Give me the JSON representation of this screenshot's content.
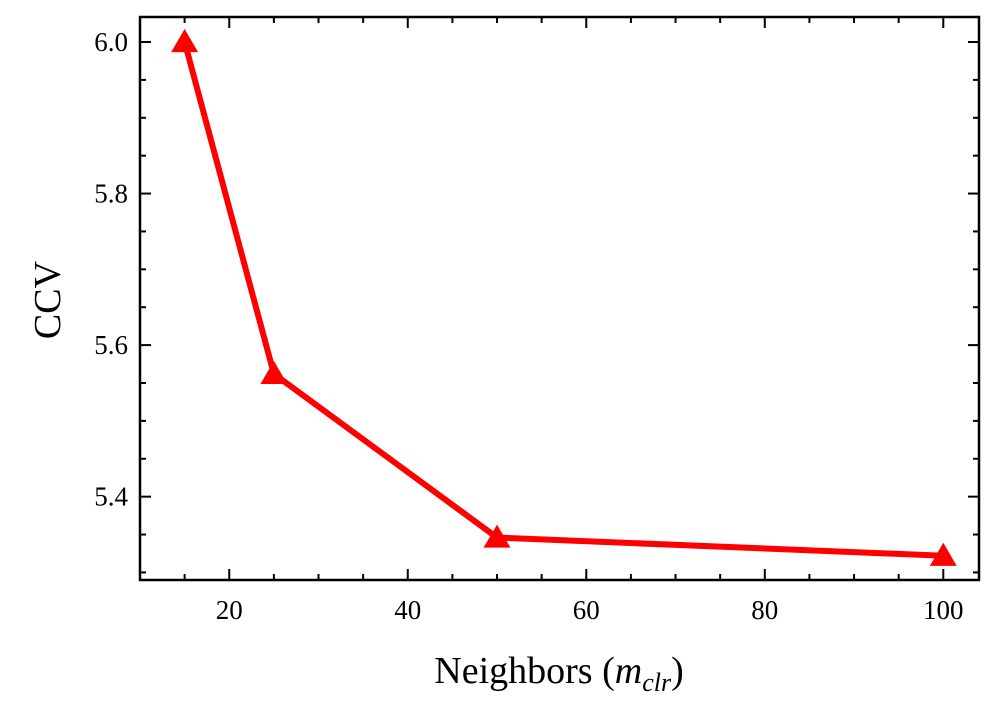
{
  "chart_data": {
    "type": "line",
    "title": "",
    "xlabel": {
      "main": "Neighbors (",
      "var": "m",
      "sub": "clr",
      "close": ")"
    },
    "ylabel": "CCV",
    "xlim": [
      10,
      104
    ],
    "ylim": [
      5.29,
      6.033
    ],
    "x_ticks": [
      20,
      40,
      60,
      80,
      100
    ],
    "y_ticks": [
      5.4,
      5.6,
      5.8,
      6.0
    ],
    "x_tick_labels": [
      "20",
      "40",
      "60",
      "80",
      "100"
    ],
    "y_tick_labels": [
      "5.4",
      "5.6",
      "5.8",
      "6.0"
    ],
    "x_minor_step": 5,
    "y_minor_step": 0.05,
    "grid": false,
    "legend": "none",
    "series": [
      {
        "marker": "triangle",
        "color": "#ff0000",
        "x": [
          15,
          25,
          50,
          100
        ],
        "y": [
          6.0,
          5.562,
          5.346,
          5.322
        ]
      }
    ]
  }
}
